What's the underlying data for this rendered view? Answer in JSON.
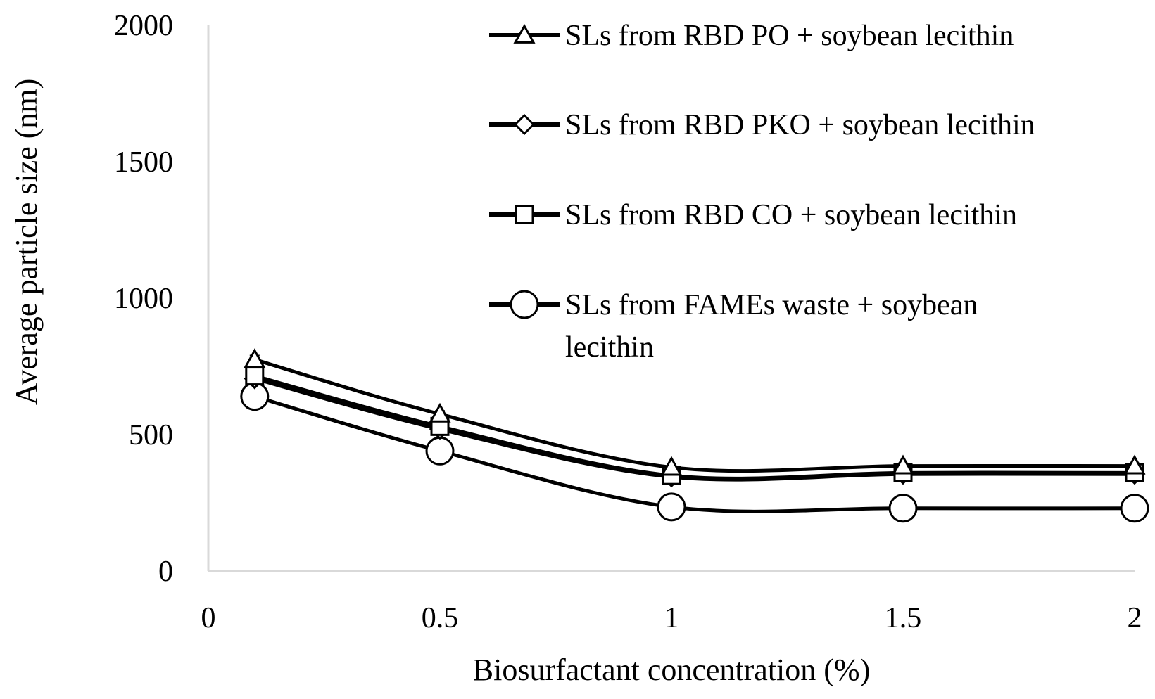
{
  "chart_data": {
    "type": "line",
    "title": "",
    "xlabel": "Biosurfactant concentration (%)",
    "ylabel": "Average particle size (nm)",
    "xlim": [
      0,
      2
    ],
    "ylim": [
      0,
      2000
    ],
    "xticks": [
      0,
      0.5,
      1,
      1.5,
      2
    ],
    "xtick_labels": [
      "0",
      "0.5",
      "1",
      "1.5",
      "2"
    ],
    "yticks": [
      0,
      500,
      1000,
      1500,
      2000
    ],
    "ytick_labels": [
      "0",
      "500",
      "1000",
      "1500",
      "2000"
    ],
    "grid": false,
    "legend_position": "top-right",
    "x": [
      0.1,
      0.5,
      1,
      1.5,
      2
    ],
    "series": [
      {
        "name": "SLs from RBD PO + soybean lecithin",
        "marker": "triangle",
        "values": [
          775,
          575,
          380,
          385,
          385
        ],
        "error": [
          15,
          12,
          10,
          10,
          10
        ]
      },
      {
        "name": "SLs from RBD PKO + soybean lecithin",
        "marker": "diamond",
        "values": [
          705,
          520,
          345,
          355,
          355
        ],
        "error": [
          15,
          12,
          10,
          10,
          10
        ]
      },
      {
        "name": "SLs from RBD CO + soybean lecithin",
        "marker": "square",
        "values": [
          715,
          530,
          350,
          360,
          360
        ],
        "error": [
          15,
          12,
          10,
          10,
          10
        ]
      },
      {
        "name": "SLs from FAMEs waste + soybean lecithin",
        "marker": "circle",
        "values": [
          640,
          440,
          235,
          230,
          230
        ],
        "error": [
          20,
          15,
          10,
          10,
          10
        ]
      }
    ],
    "colors": {
      "line": "#000000",
      "axis": "#d9d9d9",
      "marker_fill": "#ffffff"
    }
  }
}
